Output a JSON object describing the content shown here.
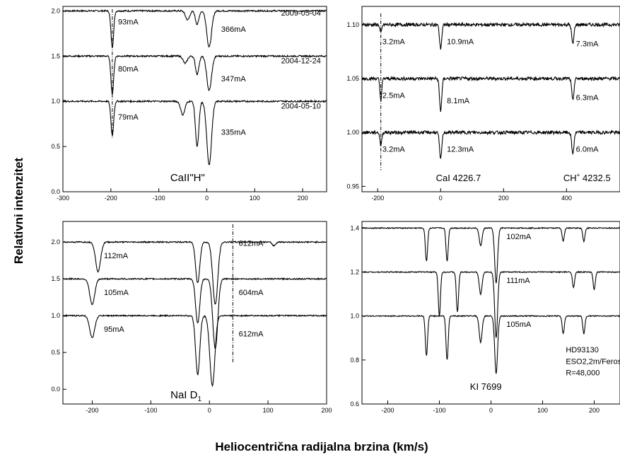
{
  "figure": {
    "ylabel": "Relativni intenzitet",
    "xlabel": "Heliocentrična radijalna brzina (km/s)"
  },
  "chart_data": [
    {
      "type": "line",
      "title": "CaII\"H\"",
      "xlim": [
        -300,
        250
      ],
      "ylim": [
        0.0,
        2.05
      ],
      "xticks": [
        -300,
        -200,
        -100,
        0,
        100,
        200
      ],
      "yticks": [
        0.0,
        0.5,
        1.0,
        1.5,
        2.0
      ],
      "series": [
        {
          "offset": 2.0,
          "date": "2009-05-04",
          "lines": [
            {
              "x": -197,
              "depth": 0.4,
              "width": 4
            },
            {
              "x": -20,
              "depth": 0.15,
              "width": 5
            },
            {
              "x": 5,
              "depth": 0.4,
              "width": 7
            },
            {
              "x": -40,
              "depth": 0.1,
              "width": 6
            }
          ]
        },
        {
          "offset": 1.5,
          "date": "2004-12-24",
          "lines": [
            {
              "x": -197,
              "depth": 0.42,
              "width": 4
            },
            {
              "x": -20,
              "depth": 0.2,
              "width": 5
            },
            {
              "x": 5,
              "depth": 0.38,
              "width": 7
            },
            {
              "x": -45,
              "depth": 0.08,
              "width": 6
            }
          ]
        },
        {
          "offset": 1.0,
          "date": "2004-05-10",
          "lines": [
            {
              "x": -197,
              "depth": 0.38,
              "width": 4
            },
            {
              "x": -20,
              "depth": 0.5,
              "width": 5
            },
            {
              "x": 5,
              "depth": 0.7,
              "width": 7
            },
            {
              "x": -50,
              "depth": 0.15,
              "width": 6
            }
          ]
        }
      ],
      "annotations": [
        {
          "text": "93mA",
          "x": -185,
          "y": 1.85
        },
        {
          "text": "366mA",
          "x": 30,
          "y": 1.77
        },
        {
          "text": "2009-05-04",
          "x": 155,
          "y": 1.95
        },
        {
          "text": "80mA",
          "x": -185,
          "y": 1.33
        },
        {
          "text": "347mA",
          "x": 30,
          "y": 1.22
        },
        {
          "text": "2004-12-24",
          "x": 155,
          "y": 1.42
        },
        {
          "text": "79mA",
          "x": -185,
          "y": 0.8
        },
        {
          "text": "335mA",
          "x": 30,
          "y": 0.63
        },
        {
          "text": "2004-05-10",
          "x": 155,
          "y": 0.92
        }
      ],
      "marker_x": -197
    },
    {
      "type": "line",
      "title": "CaI 4226.7",
      "title2": "CH+ 4232.5",
      "xlim": [
        -250,
        570
      ],
      "ylim": [
        0.945,
        1.117
      ],
      "xticks": [
        -200,
        0,
        200,
        400
      ],
      "yticks": [
        0.95,
        1.0,
        1.05,
        1.1
      ],
      "series": [
        {
          "offset": 1.1,
          "lines": [
            {
              "x": -190,
              "depth": 0.008,
              "width": 4
            },
            {
              "x": 0,
              "depth": 0.022,
              "width": 5
            },
            {
              "x": 420,
              "depth": 0.018,
              "width": 5
            }
          ]
        },
        {
          "offset": 1.05,
          "lines": [
            {
              "x": -190,
              "depth": 0.02,
              "width": 4
            },
            {
              "x": 0,
              "depth": 0.03,
              "width": 5
            },
            {
              "x": 420,
              "depth": 0.02,
              "width": 5
            }
          ]
        },
        {
          "offset": 1.0,
          "lines": [
            {
              "x": -190,
              "depth": 0.012,
              "width": 4
            },
            {
              "x": 0,
              "depth": 0.025,
              "width": 5
            },
            {
              "x": 420,
              "depth": 0.02,
              "width": 5
            }
          ]
        }
      ],
      "annotations": [
        {
          "text": "3.2mA",
          "x": -185,
          "y": 1.082
        },
        {
          "text": "10.9mA",
          "x": 20,
          "y": 1.082
        },
        {
          "text": "7.3mA",
          "x": 430,
          "y": 1.08
        },
        {
          "text": "2.5mA",
          "x": -185,
          "y": 1.032
        },
        {
          "text": "8.1mA",
          "x": 20,
          "y": 1.027
        },
        {
          "text": "6.3mA",
          "x": 430,
          "y": 1.03
        },
        {
          "text": "3.2mA",
          "x": -185,
          "y": 0.982
        },
        {
          "text": "12.3mA",
          "x": 20,
          "y": 0.982
        },
        {
          "text": "6.0mA",
          "x": 430,
          "y": 0.982
        }
      ],
      "marker_x": -190
    },
    {
      "type": "line",
      "title": "NaI D1",
      "xlim": [
        -250,
        200
      ],
      "ylim": [
        -0.2,
        2.28
      ],
      "xticks": [
        -200,
        -100,
        0,
        100,
        200
      ],
      "yticks": [
        0.0,
        0.5,
        1.0,
        1.5,
        2.0
      ],
      "series": [
        {
          "offset": 2.0,
          "lines": [
            {
              "x": -190,
              "depth": 0.4,
              "width": 6
            },
            {
              "x": -20,
              "depth": 0.55,
              "width": 5
            },
            {
              "x": 10,
              "depth": 0.85,
              "width": 6
            },
            {
              "x": 110,
              "depth": 0.05,
              "width": 4
            }
          ]
        },
        {
          "offset": 1.5,
          "lines": [
            {
              "x": -200,
              "depth": 0.35,
              "width": 6
            },
            {
              "x": -20,
              "depth": 0.6,
              "width": 5
            },
            {
              "x": 10,
              "depth": 0.95,
              "width": 6
            }
          ]
        },
        {
          "offset": 1.0,
          "lines": [
            {
              "x": -200,
              "depth": 0.3,
              "width": 6
            },
            {
              "x": -20,
              "depth": 0.8,
              "width": 5
            },
            {
              "x": 5,
              "depth": 0.95,
              "width": 6
            }
          ]
        }
      ],
      "annotations": [
        {
          "text": "112mA",
          "x": -180,
          "y": 1.78
        },
        {
          "text": "612mA",
          "x": 50,
          "y": 1.95
        },
        {
          "text": "105mA",
          "x": -180,
          "y": 1.28
        },
        {
          "text": "604mA",
          "x": 50,
          "y": 1.28
        },
        {
          "text": "95mA",
          "x": -180,
          "y": 0.78
        },
        {
          "text": "612mA",
          "x": 50,
          "y": 0.72
        }
      ],
      "marker_x": 40
    },
    {
      "type": "line",
      "title": "KI 7699",
      "xlim": [
        -250,
        250
      ],
      "ylim": [
        0.6,
        1.43
      ],
      "xticks": [
        -200,
        -100,
        0,
        100,
        200
      ],
      "yticks": [
        0.6,
        0.8,
        1.0,
        1.2,
        1.4
      ],
      "series": [
        {
          "offset": 1.4,
          "lines": [
            {
              "x": -125,
              "depth": 0.15,
              "width": 3
            },
            {
              "x": -85,
              "depth": 0.15,
              "width": 3
            },
            {
              "x": -20,
              "depth": 0.08,
              "width": 4
            },
            {
              "x": 10,
              "depth": 0.25,
              "width": 4
            },
            {
              "x": 140,
              "depth": 0.06,
              "width": 3
            },
            {
              "x": 180,
              "depth": 0.06,
              "width": 3
            }
          ]
        },
        {
          "offset": 1.2,
          "lines": [
            {
              "x": -100,
              "depth": 0.2,
              "width": 3
            },
            {
              "x": -65,
              "depth": 0.18,
              "width": 3
            },
            {
              "x": -20,
              "depth": 0.1,
              "width": 4
            },
            {
              "x": 10,
              "depth": 0.3,
              "width": 4
            },
            {
              "x": 160,
              "depth": 0.07,
              "width": 3
            },
            {
              "x": 200,
              "depth": 0.08,
              "width": 3
            }
          ]
        },
        {
          "offset": 1.0,
          "lines": [
            {
              "x": -125,
              "depth": 0.18,
              "width": 3
            },
            {
              "x": -85,
              "depth": 0.2,
              "width": 3
            },
            {
              "x": -20,
              "depth": 0.12,
              "width": 4
            },
            {
              "x": 10,
              "depth": 0.26,
              "width": 4
            },
            {
              "x": 140,
              "depth": 0.08,
              "width": 3
            },
            {
              "x": 180,
              "depth": 0.08,
              "width": 3
            }
          ]
        }
      ],
      "annotations": [
        {
          "text": "102mA",
          "x": 30,
          "y": 1.35
        },
        {
          "text": "111mA",
          "x": 30,
          "y": 1.15
        },
        {
          "text": "105mA",
          "x": 30,
          "y": 0.95
        },
        {
          "text": "HD93130",
          "x": 145,
          "y": 0.835
        },
        {
          "text": "ESO2,2m/Feros",
          "x": 145,
          "y": 0.782
        },
        {
          "text": "R=48,000",
          "x": 145,
          "y": 0.73
        }
      ]
    }
  ]
}
